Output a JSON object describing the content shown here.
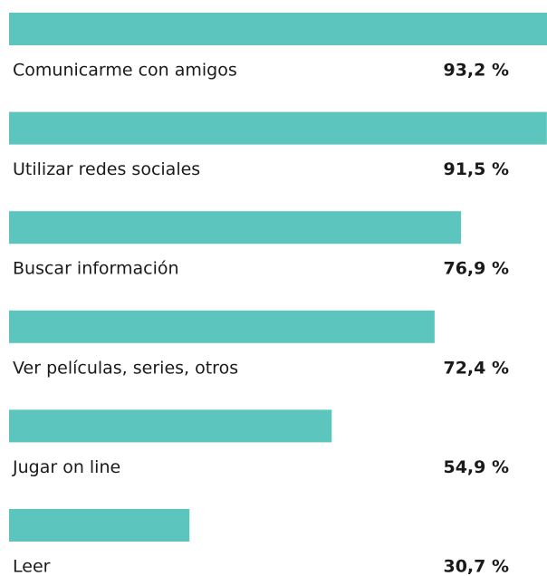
{
  "chart_data": {
    "type": "bar",
    "orientation": "horizontal",
    "color": "#5cc6be",
    "categories": [
      "Comunicarme con amigos",
      "Utilizar redes sociales",
      "Buscar información",
      "Ver películas, series, otros",
      "Jugar on line",
      "Leer"
    ],
    "values": [
      93.2,
      91.5,
      76.9,
      72.4,
      54.9,
      30.7
    ],
    "value_labels": [
      "93,2 %",
      "91,5 %",
      "76,9 %",
      "72,4 %",
      "54,9 %",
      "30,7 %"
    ]
  }
}
